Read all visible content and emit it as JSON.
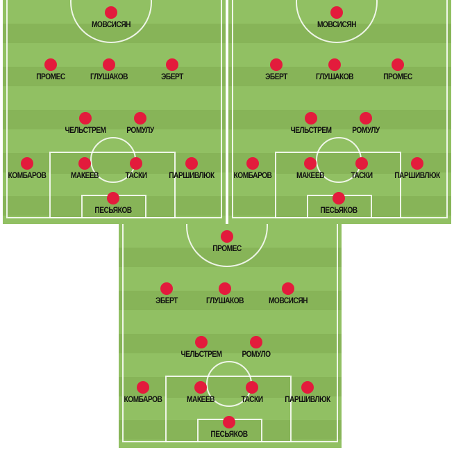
{
  "colors": {
    "pitch_light": "#91c063",
    "pitch_dark": "#87b458",
    "player_dot": "#e31b3c",
    "lines": "#ffffff"
  },
  "fields": [
    {
      "players": {
        "st": "МОВСИСЯН",
        "lm": "ПРОМЕС",
        "cm": "ГЛУШАКОВ",
        "rm": "ЭБЕРТ",
        "dml": "ЧЕЛЬСТРЕМ",
        "dmr": "РОМУЛУ",
        "lb": "КОМБАРОВ",
        "lcb": "МАКЕЕВ",
        "rcb": "ТАСКИ",
        "rb": "ПАРШИВЛЮК",
        "gk": "ПЕСЬЯКОВ"
      }
    },
    {
      "players": {
        "st": "МОВСИСЯН",
        "lm": "ЭБЕРТ",
        "cm": "ГЛУШАКОВ",
        "rm": "ПРОМЕС",
        "dml": "ЧЕЛЬСТРЕМ",
        "dmr": "РОМУЛУ",
        "lb": "КОМБАРОВ",
        "lcb": "МАКЕЕВ",
        "rcb": "ТАСКИ",
        "rb": "ПАРШИВЛЮК",
        "gk": "ПЕСЬЯКОВ"
      }
    },
    {
      "players": {
        "st": "ПРОМЕС",
        "lm": "ЭБЕРТ",
        "cm": "ГЛУШАКОВ",
        "rm": "МОВСИСЯН",
        "dml": "ЧЕЛЬСТРЕМ",
        "dmr": "РОМУЛО",
        "lb": "КОМБАРОВ",
        "lcb": "МАКЕЕВ",
        "rcb": "ТАСКИ",
        "rb": "ПАРШИВЛЮК",
        "gk": "ПЕСЬЯКОВ"
      }
    }
  ]
}
